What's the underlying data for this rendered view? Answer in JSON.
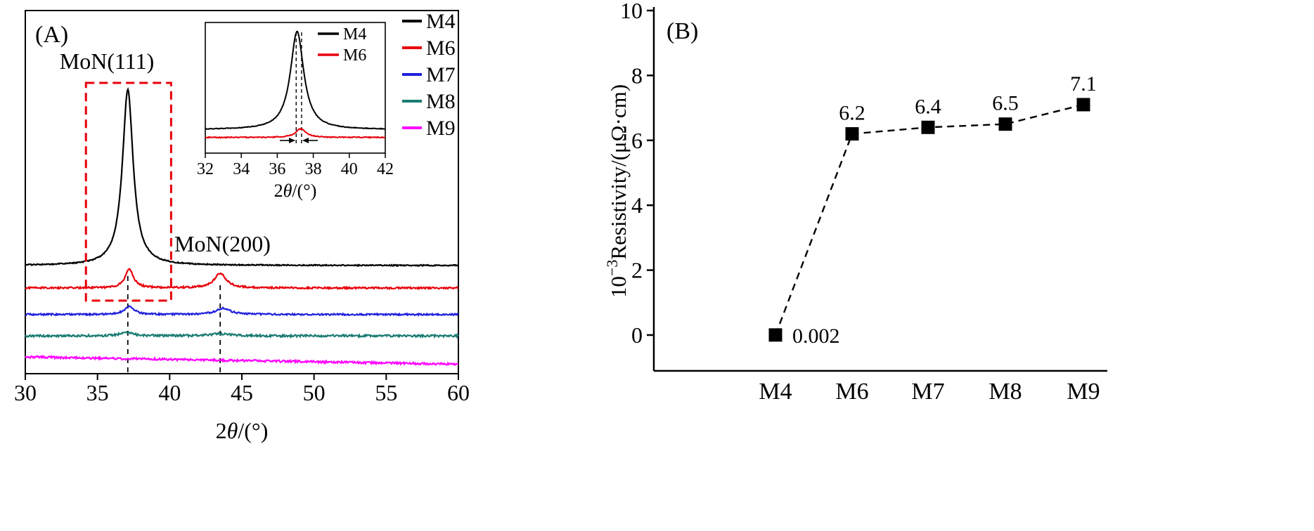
{
  "chart_data": [
    {
      "id": "A",
      "type": "line",
      "panel_label": "(A)",
      "xlabel_parts": [
        "2",
        "θ",
        "/(°)"
      ],
      "xlim": [
        30,
        60
      ],
      "x_ticks": [
        30,
        35,
        40,
        45,
        50,
        55,
        60
      ],
      "annotations": [
        {
          "text": "MoN(111)",
          "x": 37.1
        },
        {
          "text": "MoN(200)",
          "x": 43.5
        }
      ],
      "dashed_guides_x": [
        37.1,
        43.5
      ],
      "highlight_box": {
        "x1": 34.2,
        "x2": 40.1,
        "color": "#e8000b"
      },
      "series": [
        {
          "name": "M4",
          "color": "#000000",
          "baseline": 0.298,
          "noise": 0.8,
          "peaks": [
            {
              "center": 37.1,
              "height": 0.484,
              "hwhm": 0.45
            }
          ]
        },
        {
          "name": "M6",
          "color": "#e8000b",
          "baseline": 0.236,
          "noise": 1.2,
          "peaks": [
            {
              "center": 37.2,
              "height": 0.052,
              "hwhm": 0.35
            },
            {
              "center": 43.5,
              "height": 0.04,
              "hwhm": 0.5
            }
          ]
        },
        {
          "name": "M7",
          "color": "#2020dd",
          "baseline": 0.163,
          "noise": 1.2,
          "peaks": [
            {
              "center": 37.2,
              "height": 0.022,
              "hwhm": 0.4
            },
            {
              "center": 43.7,
              "height": 0.017,
              "hwhm": 0.6
            }
          ]
        },
        {
          "name": "M8",
          "color": "#1b7d74",
          "baseline": 0.104,
          "noise": 1.5,
          "peaks": [
            {
              "center": 37.0,
              "height": 0.01,
              "hwhm": 0.5
            },
            {
              "center": 43.5,
              "height": 0.006,
              "hwhm": 0.8
            }
          ]
        },
        {
          "name": "M9",
          "color": "#ff00ff",
          "baseline": 0.046,
          "noise": 1.5,
          "slope": -0.02,
          "peaks": []
        }
      ],
      "inset": {
        "xlim": [
          32,
          42
        ],
        "x_ticks": [
          32,
          34,
          36,
          38,
          40,
          42
        ],
        "xlabel_parts": [
          "2",
          "θ",
          "/(°)"
        ],
        "guide_x": [
          37.05,
          37.35
        ],
        "series": [
          {
            "name": "M4",
            "color": "#000000",
            "baseline": 0.18,
            "noise": 0.5,
            "peaks": [
              {
                "center": 37.1,
                "height": 0.75,
                "hwhm": 0.45
              }
            ]
          },
          {
            "name": "M6",
            "color": "#e8000b",
            "baseline": 0.12,
            "noise": 0.7,
            "peaks": [
              {
                "center": 37.3,
                "height": 0.065,
                "hwhm": 0.35
              }
            ]
          }
        ]
      }
    },
    {
      "id": "B",
      "type": "scatter-line",
      "panel_label": "(B)",
      "ylabel_parts": {
        "base": "10",
        "sup": "−3",
        "rest": "Resistivity/(μΩ·cm)"
      },
      "categories": [
        "M4",
        "M6",
        "M7",
        "M8",
        "M9"
      ],
      "values": [
        0.002,
        6.2,
        6.4,
        6.5,
        7.1
      ],
      "value_labels": [
        "0.002",
        "6.2",
        "6.4",
        "6.5",
        "7.1"
      ],
      "ylim": [
        0,
        10
      ],
      "y_ticks": [
        0,
        2,
        4,
        6,
        8,
        10
      ],
      "marker": "square",
      "line_style": "dashed",
      "color": "#000000"
    }
  ]
}
